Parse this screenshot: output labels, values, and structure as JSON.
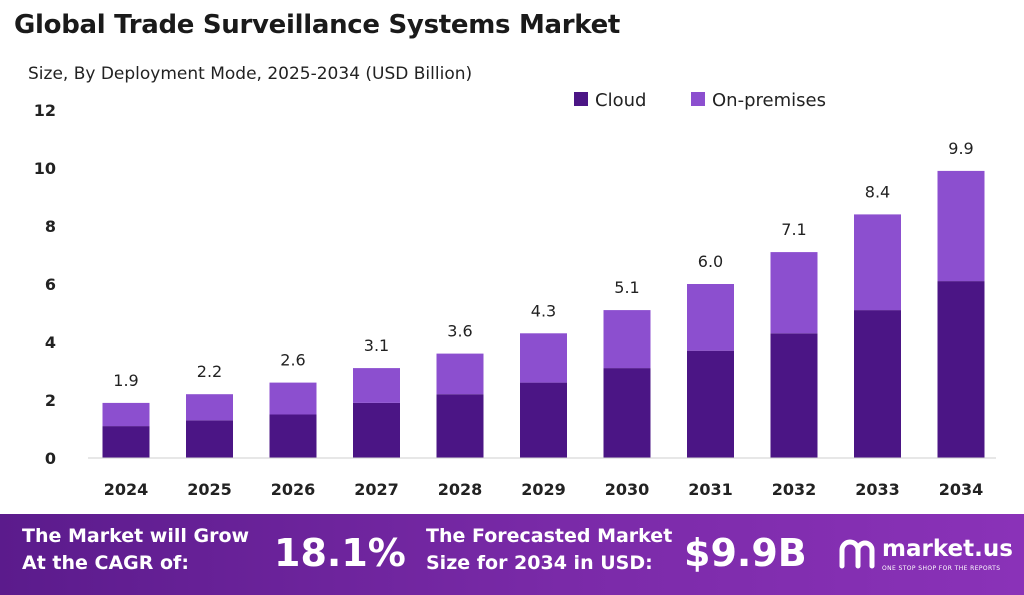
{
  "chart_data": {
    "type": "bar",
    "stacked": true,
    "title": "Global Trade Surveillance Systems Market",
    "subtitle": "Size, By Deployment Mode, 2025-2034 (USD Billion)",
    "categories": [
      "2024",
      "2025",
      "2026",
      "2027",
      "2028",
      "2029",
      "2030",
      "2031",
      "2032",
      "2033",
      "2034"
    ],
    "series": [
      {
        "name": "Cloud",
        "color": "#4b1585",
        "values": [
          1.1,
          1.3,
          1.5,
          1.9,
          2.2,
          2.6,
          3.1,
          3.7,
          4.3,
          5.1,
          6.1
        ]
      },
      {
        "name": "On-premises",
        "color": "#8c4fcf",
        "values": [
          0.8,
          0.9,
          1.1,
          1.2,
          1.4,
          1.7,
          2.0,
          2.3,
          2.8,
          3.3,
          3.8
        ]
      }
    ],
    "totals": [
      "1.9",
      "2.2",
      "2.6",
      "3.1",
      "3.6",
      "4.3",
      "5.1",
      "6.0",
      "7.1",
      "8.4",
      "9.9"
    ],
    "ylim": [
      0,
      12
    ],
    "yticks": [
      0,
      2,
      4,
      6,
      8,
      10,
      12
    ],
    "grid": false,
    "legend": "top-right"
  },
  "footer": {
    "cagr_text_line1": "The Market will Grow",
    "cagr_text_line2": "At the CAGR of:",
    "cagr_value": "18.1%",
    "forecast_text_line1": "The Forecasted Market",
    "forecast_text_line2": "Size for 2034 in USD:",
    "forecast_value": "$9.9B",
    "brand_name": "market.us",
    "brand_tagline": "ONE STOP SHOP FOR THE REPORTS"
  }
}
